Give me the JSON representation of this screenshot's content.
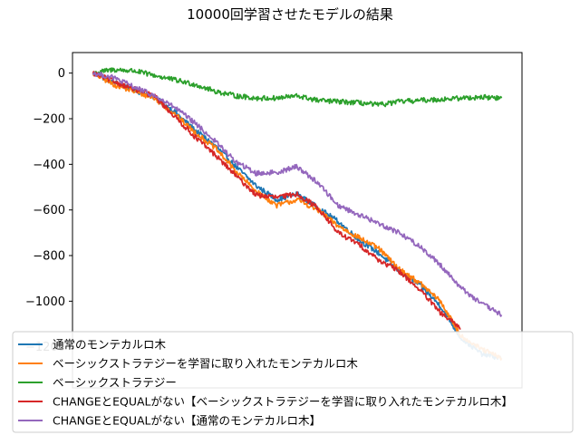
{
  "chart_data": {
    "type": "line",
    "title": "10000回学習させたモデルの結果",
    "xlabel": "",
    "ylabel": "",
    "xlim": [
      -5,
      105
    ],
    "ylim": [
      -1380,
      90
    ],
    "yticks": [
      0,
      -200,
      -400,
      -600,
      -800,
      -1000,
      -1200
    ],
    "ytick_labels": [
      "0",
      "−200",
      "−400",
      "−600",
      "−800",
      "−1000",
      "−1200"
    ],
    "grid": false,
    "legend_position": "lower-center",
    "series": [
      {
        "name": "通常のモンテカルロ木",
        "color": "#1f77b4",
        "x": [
          0,
          5,
          10,
          15,
          20,
          25,
          30,
          35,
          40,
          45,
          50,
          55,
          60,
          65,
          70,
          75,
          80,
          85,
          90,
          95,
          100
        ],
        "y": [
          0,
          -40,
          -75,
          -105,
          -170,
          -250,
          -320,
          -410,
          -495,
          -555,
          -530,
          -590,
          -650,
          -730,
          -790,
          -870,
          -930,
          -1020,
          -1160,
          -1230,
          -1250
        ]
      },
      {
        "name": "ベーシックストラテジーを学習に取り入れたモンテカルロ木",
        "color": "#ff7f0e",
        "x": [
          0,
          5,
          10,
          15,
          20,
          25,
          30,
          35,
          40,
          45,
          50,
          55,
          60,
          65,
          70,
          75,
          80,
          85,
          90,
          95,
          100
        ],
        "y": [
          0,
          -50,
          -80,
          -110,
          -180,
          -260,
          -330,
          -430,
          -520,
          -580,
          -555,
          -600,
          -670,
          -720,
          -770,
          -860,
          -920,
          -1000,
          -1150,
          -1210,
          -1250
        ]
      },
      {
        "name": "ベーシックストラテジー",
        "color": "#2ca02c",
        "x": [
          0,
          5,
          10,
          15,
          20,
          25,
          30,
          35,
          40,
          45,
          50,
          55,
          60,
          65,
          70,
          75,
          80,
          85,
          90,
          95,
          100
        ],
        "y": [
          0,
          15,
          10,
          -10,
          -30,
          -50,
          -80,
          -100,
          -110,
          -110,
          -100,
          -120,
          -125,
          -130,
          -140,
          -125,
          -120,
          -115,
          -110,
          -105,
          -110
        ]
      },
      {
        "name": "CHANGEとEQUALがない【ベーシックストラテジーを学習に取り入れたモンテカルロ木】",
        "color": "#d62728",
        "x": [
          0,
          5,
          10,
          15,
          20,
          25,
          30,
          35,
          40,
          45,
          50,
          55,
          60,
          65,
          70,
          75,
          80,
          85,
          90
        ],
        "y": [
          0,
          -35,
          -70,
          -100,
          -190,
          -280,
          -360,
          -450,
          -535,
          -545,
          -530,
          -590,
          -700,
          -750,
          -820,
          -870,
          -950,
          -1050,
          -1120
        ]
      },
      {
        "name": "CHANGEとEQUALがない【通常のモンテカルロ木】",
        "color": "#9467bd",
        "x": [
          0,
          5,
          10,
          15,
          20,
          25,
          30,
          35,
          40,
          45,
          50,
          55,
          60,
          65,
          70,
          75,
          80,
          85,
          90,
          95,
          100
        ],
        "y": [
          0,
          -20,
          -60,
          -100,
          -150,
          -220,
          -300,
          -390,
          -440,
          -435,
          -410,
          -480,
          -580,
          -620,
          -660,
          -700,
          -760,
          -840,
          -940,
          -1010,
          -1060
        ]
      }
    ]
  }
}
